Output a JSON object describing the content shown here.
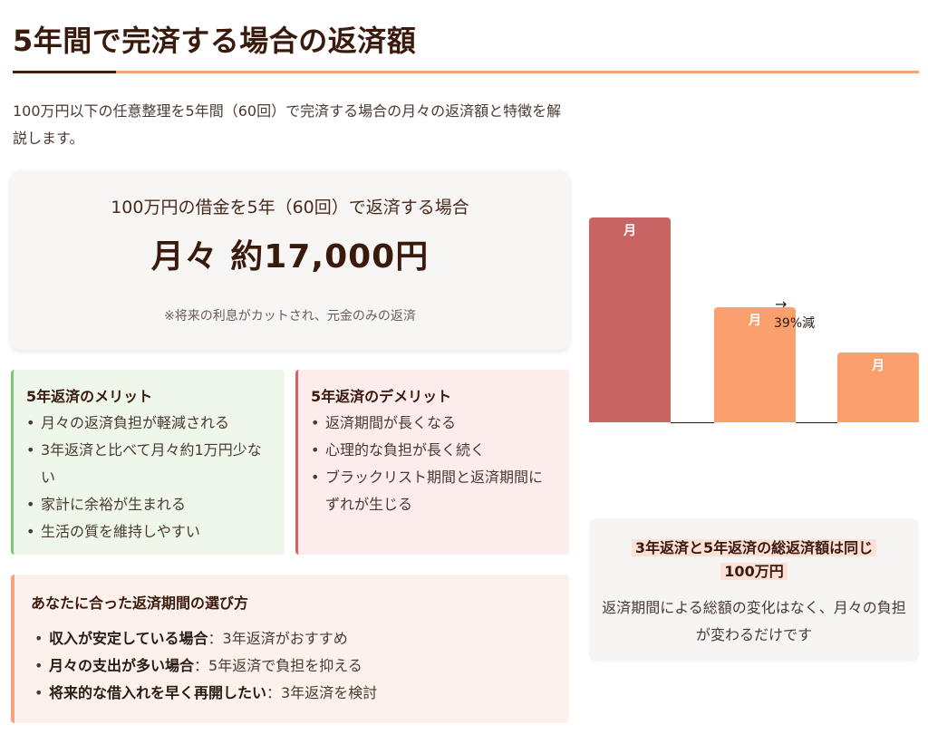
{
  "page": {
    "title": "5年間で完済する場合の返済額",
    "intro": "100万円以下の任意整理を5年間（60回）で完済する場合の月々の返済額と特徴を解説します。"
  },
  "summary": {
    "heading": "100万円の借金を5年（60回）で返済する場合",
    "amount": "月々 約17,000円",
    "note": "※将来の利息がカットされ、元金のみの返済"
  },
  "merits": {
    "title": "5年返済のメリット",
    "items": [
      "月々の返済負担が軽減される",
      "3年返済と比べて月々約1万円少ない",
      "家計に余裕が生まれる",
      "生活の質を維持しやすい"
    ]
  },
  "demerits": {
    "title": "5年返済のデメリット",
    "items": [
      "返済期間が長くなる",
      "心理的な負担が長く続く",
      "ブラックリスト期間と返済期間にずれが生じる"
    ]
  },
  "tips": {
    "title": "あなたに合った返済期間の選び方",
    "items": [
      {
        "label": "収入が安定している場合",
        "sep": "：",
        "text": "3年返済がおすすめ"
      },
      {
        "label": "月々の支出が多い場合",
        "sep": "：",
        "text": "5年返済で負担を抑える"
      },
      {
        "label": "将来的な借入れを早く再開したい",
        "sep": "：",
        "text": "3年返済を検討"
      }
    ]
  },
  "chart_data": {
    "type": "bar",
    "categories": [
      "",
      "",
      ""
    ],
    "bar_labels": [
      "月",
      "月",
      "月"
    ],
    "values": [
      100,
      56,
      34
    ],
    "ylim": [
      0,
      100
    ],
    "colors": [
      "#c96464",
      "#f9a06c",
      "#f9a06c"
    ],
    "annotation": {
      "arrow": "→",
      "text": "39%減"
    }
  },
  "total": {
    "heading_line1": "3年返済と5年返済の総返済額は同じ",
    "heading_line2": "100万円",
    "body": "返済期間による総額の変化はなく、月々の負担が変わるだけです"
  }
}
